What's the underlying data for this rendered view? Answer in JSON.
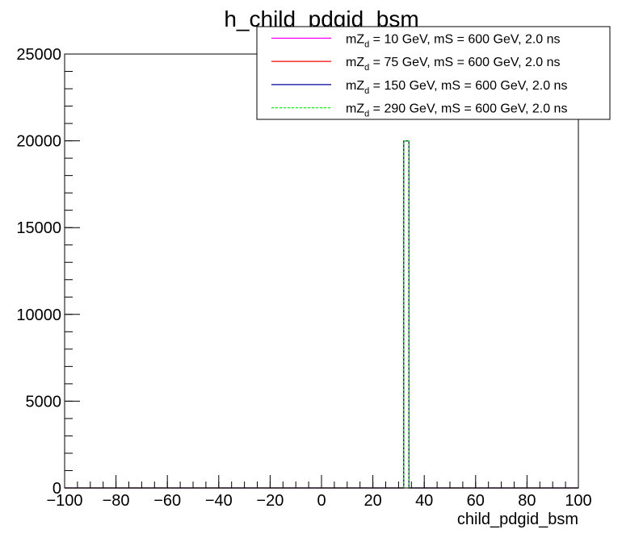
{
  "chart_data": {
    "type": "histogram",
    "title": "h_child_pdgid_bsm",
    "xlabel": "child_pdgid_bsm",
    "ylabel": "",
    "xlim": [
      -100,
      100
    ],
    "ylim": [
      0,
      25000
    ],
    "x_ticks": [
      "−100",
      "−80",
      "−60",
      "−40",
      "−20",
      "0",
      "20",
      "40",
      "60",
      "80",
      "100"
    ],
    "y_ticks": [
      "0",
      "5000",
      "10000",
      "15000",
      "20000",
      "25000"
    ],
    "bin_width": 2,
    "grid": false,
    "legend_position": "top-right",
    "series": [
      {
        "name_prefix": "mZ",
        "name_sub": "d",
        "name_rest": " = 10 GeV, mS = 600 GeV, 2.0 ns",
        "color": "#ff00ff",
        "dashed": false,
        "bins": [
          {
            "x_low": 32,
            "x_high": 34,
            "value": 20000
          }
        ]
      },
      {
        "name_prefix": "mZ",
        "name_sub": "d",
        "name_rest": " = 75 GeV, mS = 600 GeV, 2.0 ns",
        "color": "#ff0000",
        "dashed": false,
        "bins": [
          {
            "x_low": 32,
            "x_high": 34,
            "value": 20000
          }
        ]
      },
      {
        "name_prefix": "mZ",
        "name_sub": "d",
        "name_rest": " = 150 GeV, mS = 600 GeV, 2.0 ns",
        "color": "#000099",
        "dashed": false,
        "bins": [
          {
            "x_low": 32,
            "x_high": 34,
            "value": 20000
          }
        ]
      },
      {
        "name_prefix": "mZ",
        "name_sub": "d",
        "name_rest": " = 290 GeV, mS = 600 GeV, 2.0 ns",
        "color": "#00ff00",
        "dashed": true,
        "bins": [
          {
            "x_low": 32,
            "x_high": 34,
            "value": 20000
          }
        ]
      }
    ]
  }
}
